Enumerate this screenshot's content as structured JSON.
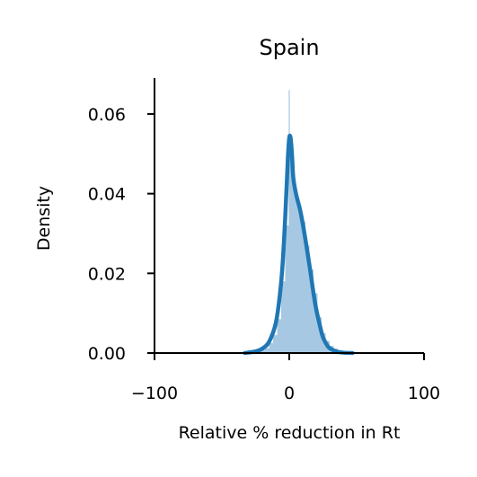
{
  "chart_data": {
    "type": "area",
    "title": "Spain",
    "xlabel": "Relative % reduction in Rt",
    "ylabel": "Density",
    "xlim": [
      -100,
      100
    ],
    "ylim": [
      0,
      0.069
    ],
    "xticks": [
      -100,
      0,
      100
    ],
    "xtick_labels": [
      "−100",
      "0",
      "100"
    ],
    "yticks": [
      0,
      0.02,
      0.04,
      0.06
    ],
    "ytick_labels": [
      "0.00",
      "0.02",
      "0.04",
      "0.06"
    ],
    "grid": false,
    "legend": "none",
    "colors": {
      "kde_line": "#1f77b4",
      "histogram_fill": "#a6c8e2",
      "histogram_highlight": "#c6dbec"
    },
    "histogram": {
      "bin_edges": [
        -33,
        -30,
        -27,
        -24,
        -21,
        -18,
        -15,
        -12,
        -9,
        -6,
        -3,
        0,
        3,
        6,
        9,
        12,
        15,
        18,
        21,
        24,
        27,
        30,
        33,
        36,
        39,
        42,
        45,
        48
      ],
      "densities": [
        0.0002,
        0.0003,
        0.0004,
        0.0005,
        0.0008,
        0.0012,
        0.0025,
        0.0045,
        0.0085,
        0.018,
        0.032,
        0.052,
        0.041,
        0.037,
        0.033,
        0.027,
        0.021,
        0.015,
        0.009,
        0.005,
        0.003,
        0.0018,
        0.0011,
        0.0007,
        0.0005,
        0.0003,
        0.0002
      ],
      "spike": {
        "x": 0,
        "density": 0.066
      }
    },
    "kde": {
      "x": [
        -33,
        -25,
        -20,
        -15,
        -10,
        -7,
        -5,
        -3,
        -1,
        0,
        1,
        2,
        3,
        5,
        8,
        10,
        12,
        15,
        18,
        20,
        23,
        25,
        28,
        30,
        35,
        40,
        47
      ],
      "y": [
        0.0,
        0.0004,
        0.0011,
        0.0028,
        0.0075,
        0.0145,
        0.022,
        0.034,
        0.049,
        0.054,
        0.054,
        0.05,
        0.044,
        0.04,
        0.036,
        0.0325,
        0.0285,
        0.022,
        0.015,
        0.011,
        0.0065,
        0.004,
        0.002,
        0.0012,
        0.0004,
        0.0001,
        0.0
      ]
    }
  }
}
